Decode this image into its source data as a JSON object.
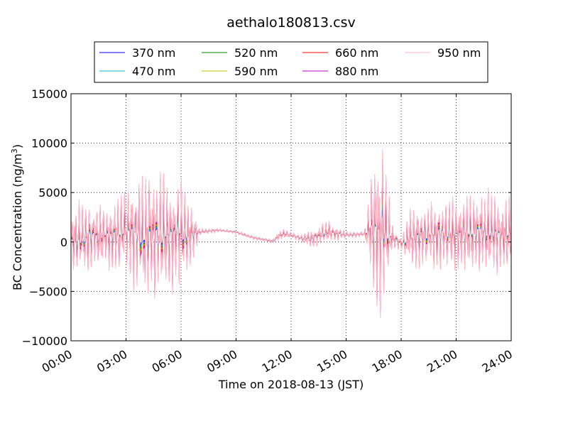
{
  "chart_data": {
    "type": "line",
    "title": "aethalo180813.csv",
    "xlabel": "Time on 2018-08-13 (JST)",
    "ylabel_main": "BC Concentration (ng/m",
    "ylabel_sup": "3",
    "ylabel_end": ")",
    "xlim": [
      "00:00",
      "24:00"
    ],
    "ylim": [
      -10000,
      15000
    ],
    "x_ticks": [
      "00:00",
      "03:00",
      "06:00",
      "09:00",
      "12:00",
      "15:00",
      "18:00",
      "21:00",
      "24:00"
    ],
    "y_ticks": [
      "15000",
      "10000",
      "5000",
      "0",
      "−5000",
      "−10000"
    ],
    "y_tick_values": [
      15000,
      10000,
      5000,
      0,
      -5000,
      -10000
    ],
    "grid": true,
    "legend_placement": "top-center",
    "series": [
      {
        "name": "370 nm",
        "color": "#0000ff",
        "wavelength": 370
      },
      {
        "name": "470 nm",
        "color": "#00bfbf",
        "wavelength": 470
      },
      {
        "name": "520 nm",
        "color": "#008000",
        "wavelength": 520
      },
      {
        "name": "590 nm",
        "color": "#bfbf00",
        "wavelength": 590
      },
      {
        "name": "660 nm",
        "color": "#ff0000",
        "wavelength": 660
      },
      {
        "name": "880 nm",
        "color": "#bf00bf",
        "wavelength": 880
      },
      {
        "name": "950 nm",
        "color": "#ffb6c1",
        "wavelength": 950
      }
    ],
    "envelope_hours": [
      0,
      1,
      2,
      3,
      4,
      5,
      6,
      6.5,
      7,
      8,
      9,
      10,
      11,
      11.5,
      12,
      12.5,
      13,
      14,
      15,
      16,
      16.5,
      17,
      17.5,
      18,
      18.5,
      19,
      20,
      21,
      22,
      23,
      24
    ],
    "envelope_amplitude": [
      3000,
      3500,
      3000,
      4000,
      6000,
      5500,
      4500,
      3500,
      300,
      150,
      150,
      150,
      150,
      500,
      300,
      300,
      800,
      1000,
      300,
      200,
      6500,
      8000,
      1200,
      500,
      2500,
      2800,
      3200,
      3500,
      3800,
      3500,
      3000
    ],
    "envelope_baseline": [
      200,
      500,
      700,
      1000,
      800,
      600,
      1000,
      800,
      1000,
      1200,
      1000,
      400,
      100,
      800,
      700,
      400,
      300,
      1000,
      700,
      800,
      1500,
      1000,
      500,
      -200,
      300,
      700,
      800,
      800,
      1000,
      900,
      800
    ]
  }
}
